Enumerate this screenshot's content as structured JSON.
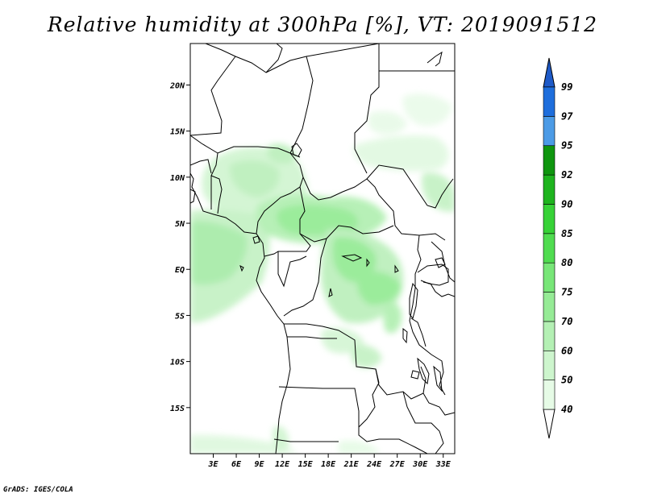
{
  "title": "Relative humidity at 300hPa [%], VT: 2019091512",
  "credit": "GrADS: IGES/COLA",
  "map": {
    "lat_range": [
      -20,
      24.5
    ],
    "lon_range": [
      0,
      34.5
    ],
    "lat_ticks": [
      {
        "value": 20,
        "label": "20N"
      },
      {
        "value": 15,
        "label": "15N"
      },
      {
        "value": 10,
        "label": "10N"
      },
      {
        "value": 5,
        "label": "5N"
      },
      {
        "value": 0,
        "label": "EQ"
      },
      {
        "value": -5,
        "label": "5S"
      },
      {
        "value": -10,
        "label": "10S"
      },
      {
        "value": -15,
        "label": "15S"
      }
    ],
    "lon_ticks": [
      {
        "value": 3,
        "label": "3E"
      },
      {
        "value": 6,
        "label": "6E"
      },
      {
        "value": 9,
        "label": "9E"
      },
      {
        "value": 12,
        "label": "12E"
      },
      {
        "value": 15,
        "label": "15E"
      },
      {
        "value": 18,
        "label": "18E"
      },
      {
        "value": 21,
        "label": "21E"
      },
      {
        "value": 24,
        "label": "24E"
      },
      {
        "value": 27,
        "label": "27E"
      },
      {
        "value": 30,
        "label": "30E"
      },
      {
        "value": 33,
        "label": "33E"
      }
    ]
  },
  "colorbar": {
    "levels": [
      {
        "label": "40",
        "color": "#e6fbe6"
      },
      {
        "label": "50",
        "color": "#cdf5cd"
      },
      {
        "label": "60",
        "color": "#b4f0b4"
      },
      {
        "label": "70",
        "color": "#96eb96"
      },
      {
        "label": "75",
        "color": "#78e678"
      },
      {
        "label": "80",
        "color": "#50dc50"
      },
      {
        "label": "85",
        "color": "#37d237"
      },
      {
        "label": "90",
        "color": "#1eb41e"
      },
      {
        "label": "92",
        "color": "#0f960f"
      },
      {
        "label": "95",
        "color": "#4c9be6"
      },
      {
        "label": "97",
        "color": "#1e6edc"
      },
      {
        "label": "99",
        "color": "#1450b4"
      }
    ],
    "lower_color": "#ffffff",
    "upper_color": "#1e5ac8"
  }
}
